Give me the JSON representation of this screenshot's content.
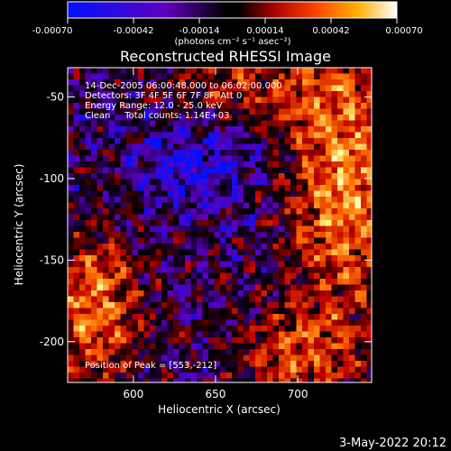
{
  "colorbar": {
    "ticks": [
      "-0.00070",
      "-0.00042",
      "-0.00014",
      "0.00014",
      "0.00042",
      "0.00070"
    ],
    "unit_label": "(photons cm⁻² s⁻¹ asec⁻²)",
    "range": [
      -0.0007,
      0.0007
    ]
  },
  "chart_data": {
    "type": "heatmap",
    "title": "Reconstructed RHESSI Image",
    "xlabel": "Heliocentric X (arcsec)",
    "ylabel": "Heliocentric Y (arcsec)",
    "xlim": [
      560,
      745
    ],
    "ylim": [
      -225,
      -32
    ],
    "x_ticks": [
      600,
      650,
      700
    ],
    "y_ticks": [
      -50,
      -100,
      -150,
      -200
    ],
    "annotations": [
      "14-Dec-2005 06:00:48.000 to 06:02:00.000",
      "Detectors: 3F 4F 5F 6F 7F 8F, Att 0",
      "Energy Range: 12.0 - 25.0 keV",
      "Clean     Total counts: 1.14E+03"
    ],
    "peak_label": "Position of Peak = [553,-212]",
    "colormap": [
      "#0010ff",
      "#5a00c0",
      "#000000",
      "#c00000",
      "#ff7000",
      "#ffff90",
      "#ffffff"
    ]
  },
  "footer": {
    "date": "3-May-2022 20:12"
  }
}
